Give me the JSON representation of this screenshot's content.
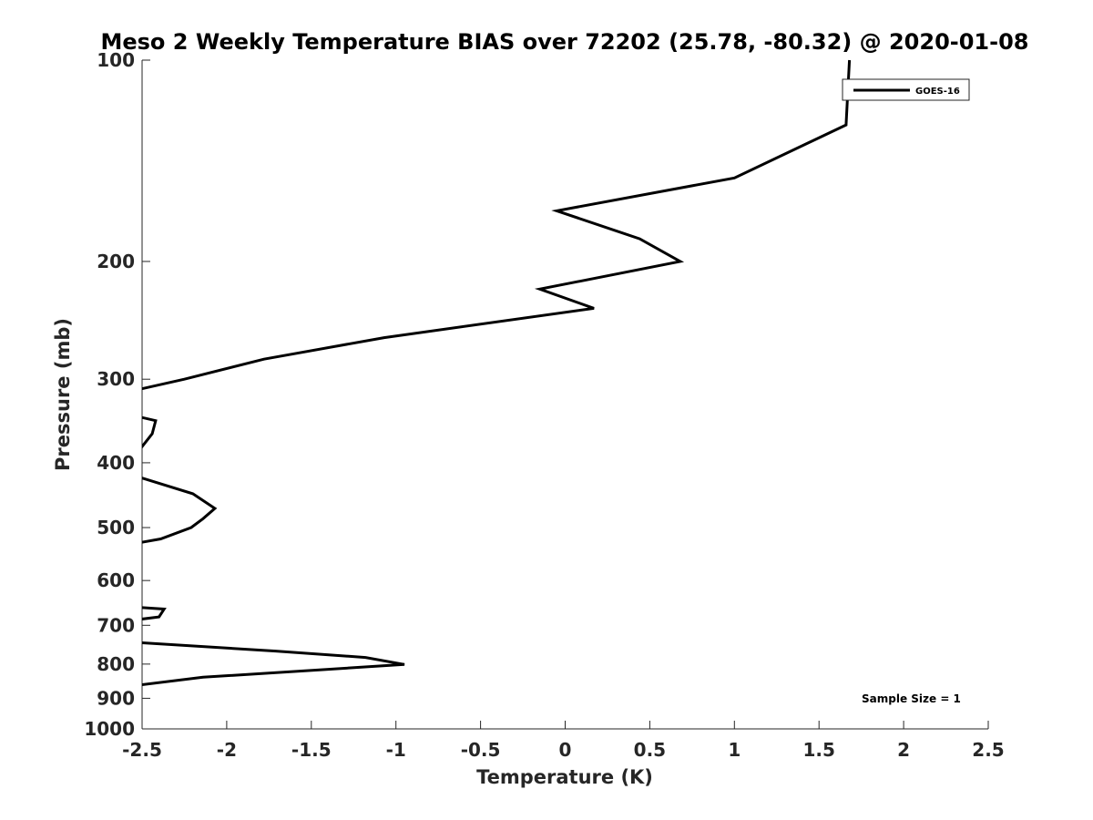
{
  "chart_data": {
    "type": "line",
    "title": "Meso 2 Weekly Temperature BIAS over 72202 (25.78, -80.32) @ 2020-01-08",
    "xlabel": "Temperature (K)",
    "ylabel": "Pressure (mb)",
    "xlim": [
      -2.5,
      2.5
    ],
    "ylim": [
      100,
      1000
    ],
    "y_scale": "log",
    "y_reversed": true,
    "grid": false,
    "legend_position": "top-right",
    "xticks": [
      -2.5,
      -2,
      -1.5,
      -1,
      -0.5,
      0,
      0.5,
      1,
      1.5,
      2,
      2.5
    ],
    "xtick_labels": [
      "-2.5",
      "-2",
      "-1.5",
      "-1",
      "-0.5",
      "0",
      "0.5",
      "1",
      "1.5",
      "2",
      "2.5"
    ],
    "yticks": [
      100,
      200,
      300,
      400,
      500,
      600,
      700,
      800,
      900,
      1000
    ],
    "ytick_labels": [
      "100",
      "200",
      "300",
      "400",
      "500",
      "600",
      "700",
      "800",
      "900",
      "1000"
    ],
    "annotation": "Sample Size = 1",
    "series": [
      {
        "name": "GOES-16",
        "color": "#000000",
        "points": [
          {
            "x": 1.68,
            "p": 100
          },
          {
            "x": 1.66,
            "p": 125
          },
          {
            "x": 1.0,
            "p": 150
          },
          {
            "x": -0.05,
            "p": 168
          },
          {
            "x": 0.44,
            "p": 185
          },
          {
            "x": 0.68,
            "p": 200
          },
          {
            "x": -0.15,
            "p": 220
          },
          {
            "x": 0.17,
            "p": 235
          },
          {
            "x": -1.07,
            "p": 260
          },
          {
            "x": -1.78,
            "p": 280
          },
          {
            "x": -2.25,
            "p": 300
          },
          {
            "x": -2.55,
            "p": 312
          },
          {
            "x": null,
            "p": 330
          },
          {
            "x": -2.55,
            "p": 340
          },
          {
            "x": -2.42,
            "p": 346
          },
          {
            "x": -2.44,
            "p": 362
          },
          {
            "x": -2.52,
            "p": 384
          },
          {
            "x": null,
            "p": 405
          },
          {
            "x": -2.52,
            "p": 420
          },
          {
            "x": -2.2,
            "p": 445
          },
          {
            "x": -2.07,
            "p": 468
          },
          {
            "x": -2.14,
            "p": 485
          },
          {
            "x": -2.21,
            "p": 500
          },
          {
            "x": -2.39,
            "p": 520
          },
          {
            "x": -2.52,
            "p": 527
          },
          {
            "x": null,
            "p": 600
          },
          {
            "x": -2.52,
            "p": 658
          },
          {
            "x": -2.37,
            "p": 662
          },
          {
            "x": -2.4,
            "p": 680
          },
          {
            "x": -2.52,
            "p": 686
          },
          {
            "x": null,
            "p": 720
          },
          {
            "x": -2.52,
            "p": 743
          },
          {
            "x": -1.71,
            "p": 765
          },
          {
            "x": -1.18,
            "p": 782
          },
          {
            "x": -0.95,
            "p": 801
          },
          {
            "x": -2.14,
            "p": 837
          },
          {
            "x": -2.52,
            "p": 860
          }
        ]
      }
    ]
  }
}
